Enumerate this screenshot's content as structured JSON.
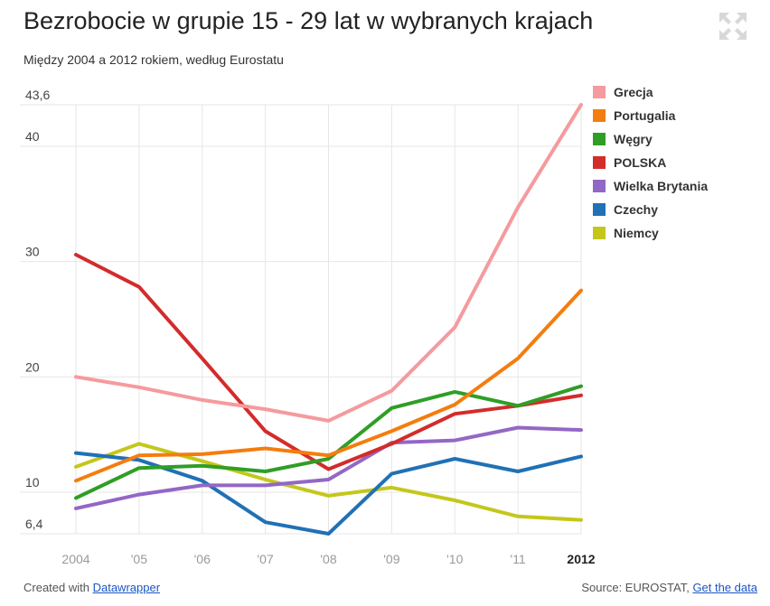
{
  "header": {
    "title": "Bezrobocie w grupie 15 - 29 lat w wybranych krajach",
    "subtitle": "Między 2004 a 2012 rokiem, według Eurostatu"
  },
  "footer": {
    "created_prefix": "Created with ",
    "created_link": "Datawrapper",
    "source_prefix": "Source: EUROSTAT, ",
    "source_link": "Get the data"
  },
  "icons": {
    "expand": "expand-arrows-icon"
  },
  "chart_data": {
    "type": "line",
    "title": "Bezrobocie w grupie 15 - 29 lat w wybranych krajach",
    "subtitle": "Między 2004 a 2012 rokiem, według Eurostatu",
    "xlabel": "",
    "ylabel": "",
    "x": [
      "2004",
      "'05",
      "'06",
      "'07",
      "'08",
      "'09",
      "'10",
      "'11",
      "2012"
    ],
    "y_ticks": [
      "6,4",
      "10",
      "20",
      "30",
      "40",
      "43,6"
    ],
    "y_tick_values": [
      6.4,
      10,
      20,
      30,
      40,
      43.6
    ],
    "ylim": [
      6.4,
      43.6
    ],
    "grid": true,
    "legend_position": "right",
    "series": [
      {
        "name": "Grecja",
        "color": "#f59a9e",
        "values": [
          20.0,
          19.1,
          18.0,
          17.2,
          16.2,
          18.8,
          24.3,
          34.7,
          43.6
        ]
      },
      {
        "name": "Portugalia",
        "color": "#f47d0f",
        "values": [
          11.0,
          13.2,
          13.3,
          13.8,
          13.2,
          15.3,
          17.6,
          21.6,
          27.5
        ]
      },
      {
        "name": "Węgry",
        "color": "#2f9e26",
        "values": [
          9.5,
          12.1,
          12.3,
          11.8,
          12.9,
          17.3,
          18.7,
          17.5,
          19.2
        ]
      },
      {
        "name": "POLSKA",
        "color": "#d42b2b",
        "values": [
          30.6,
          27.8,
          21.6,
          15.3,
          12.0,
          14.2,
          16.8,
          17.5,
          18.4
        ]
      },
      {
        "name": "Wielka Brytania",
        "color": "#9367c5",
        "values": [
          8.6,
          9.8,
          10.6,
          10.6,
          11.1,
          14.3,
          14.5,
          15.6,
          15.4
        ]
      },
      {
        "name": "Czechy",
        "color": "#2071b5",
        "values": [
          13.4,
          12.8,
          11.0,
          7.4,
          6.4,
          11.6,
          12.9,
          11.8,
          13.1
        ]
      },
      {
        "name": "Niemcy",
        "color": "#c4c71a",
        "values": [
          12.2,
          14.2,
          12.7,
          11.1,
          9.7,
          10.4,
          9.3,
          7.9,
          7.6
        ]
      }
    ]
  }
}
